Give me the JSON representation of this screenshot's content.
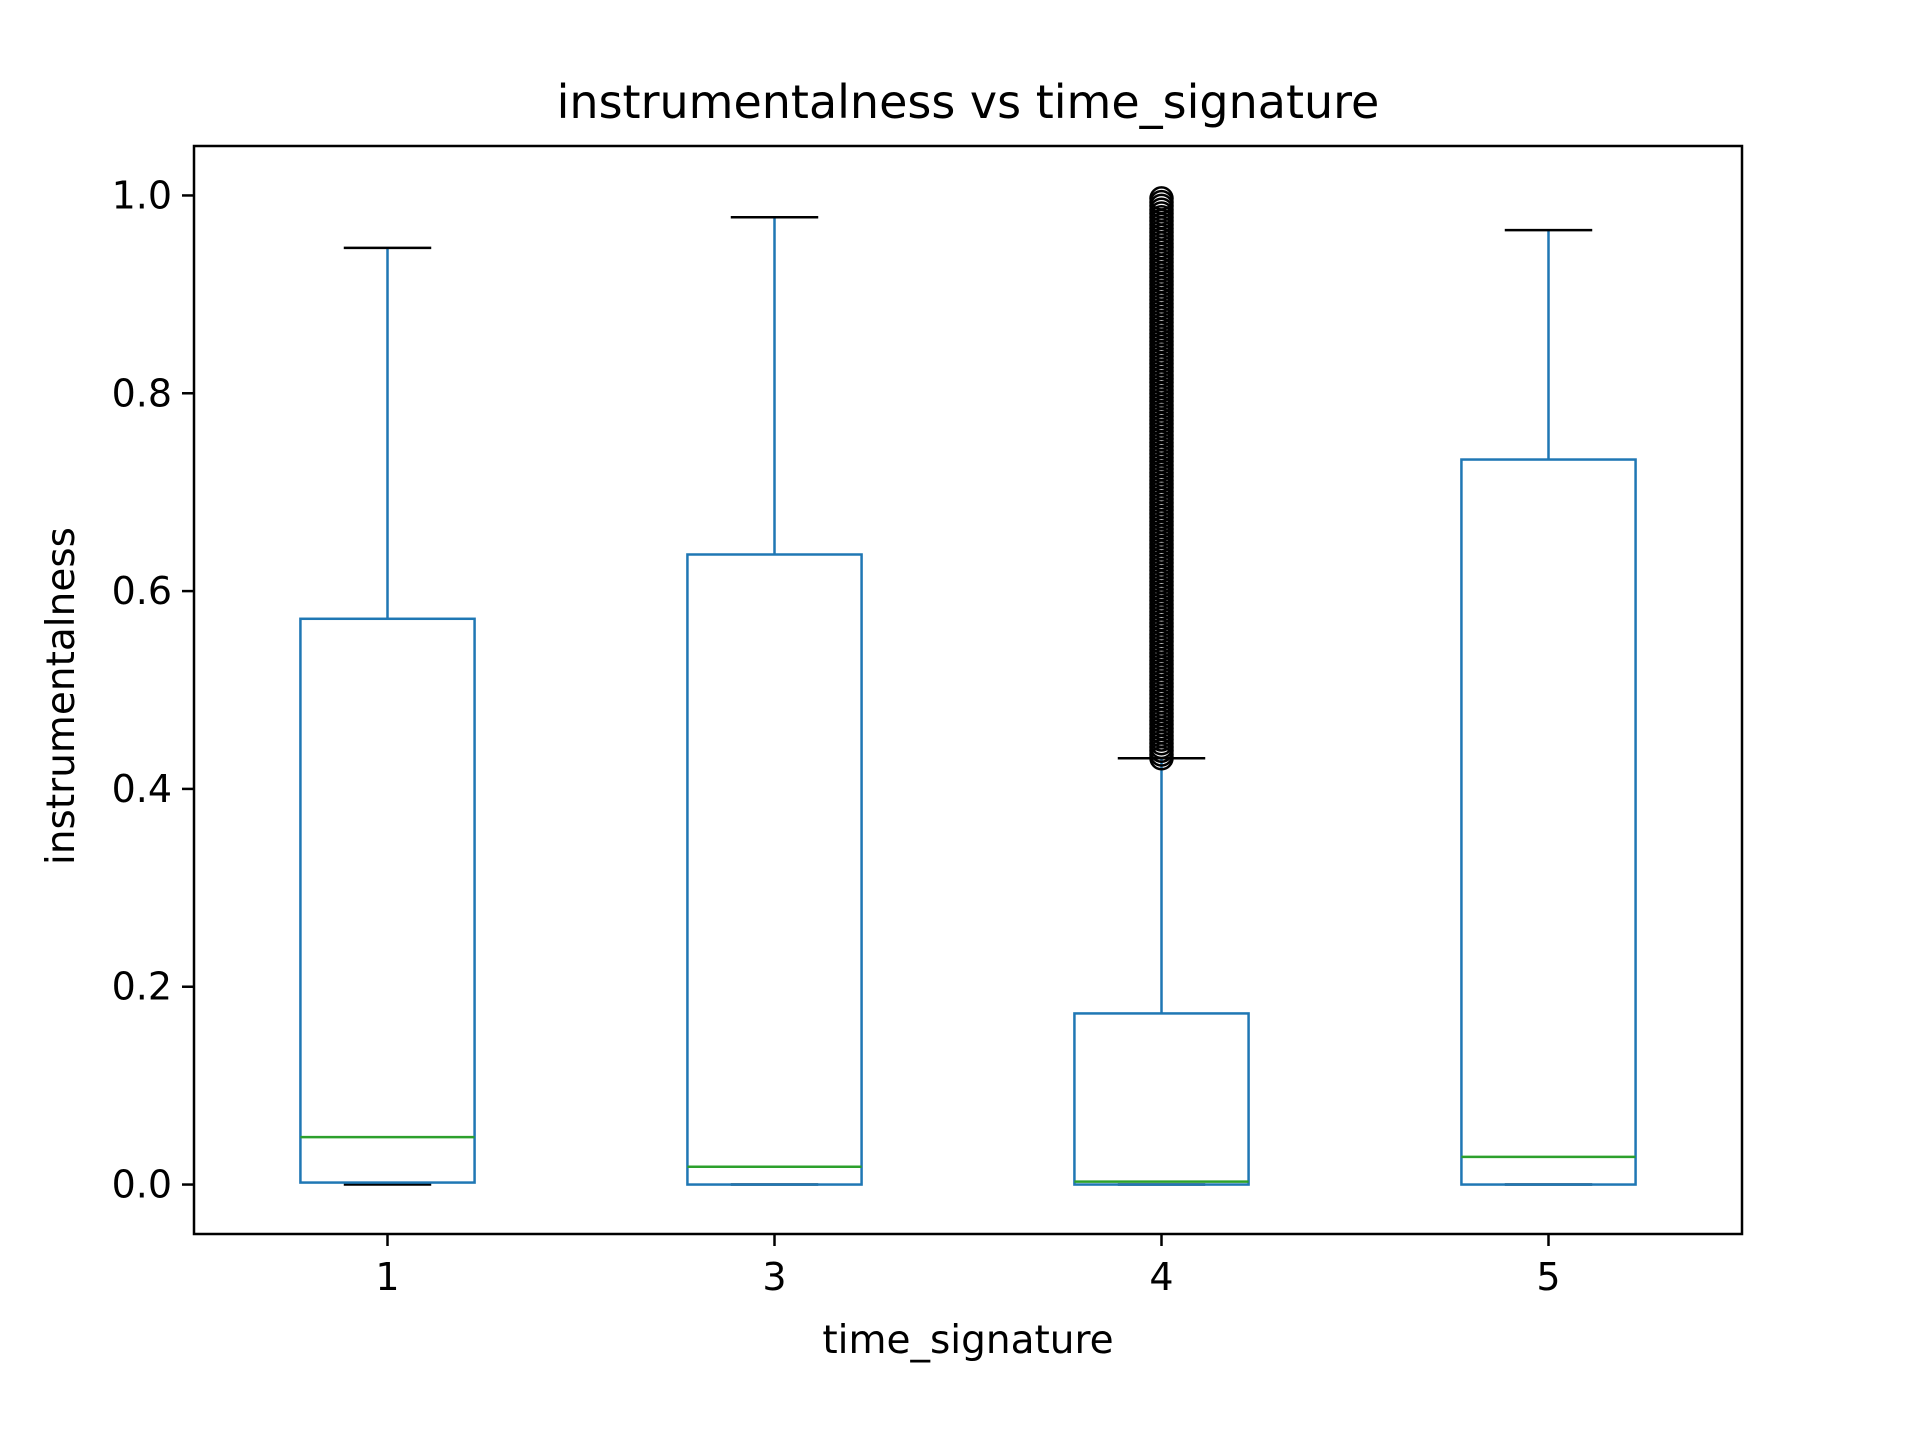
{
  "chart_data": {
    "type": "box",
    "title": "instrumentalness vs time_signature",
    "xlabel": "time_signature",
    "ylabel": "instrumentalness",
    "ylim": [
      -0.05,
      1.05
    ],
    "yticks": [
      "0.0",
      "0.2",
      "0.4",
      "0.6",
      "0.8",
      "1.0"
    ],
    "categories": [
      "1",
      "3",
      "4",
      "5"
    ],
    "grid": false,
    "colors": {
      "box": "#1f77b4",
      "median": "#2ca02c",
      "cap": "#000000",
      "flier": "#000000"
    },
    "boxes": [
      {
        "category": "1",
        "whisker_low": 0.0,
        "q1": 0.002,
        "median": 0.048,
        "q3": 0.572,
        "whisker_high": 0.947,
        "fliers": []
      },
      {
        "category": "3",
        "whisker_low": 0.0,
        "q1": 0.0,
        "median": 0.018,
        "q3": 0.637,
        "whisker_high": 0.978,
        "fliers": []
      },
      {
        "category": "4",
        "whisker_low": 0.0,
        "q1": 0.0,
        "median": 0.003,
        "q3": 0.173,
        "whisker_high": 0.431,
        "fliers_range": [
          0.431,
          0.997
        ]
      },
      {
        "category": "5",
        "whisker_low": 0.0,
        "q1": 0.0,
        "median": 0.028,
        "q3": 0.733,
        "whisker_high": 0.965,
        "fliers": []
      }
    ]
  }
}
